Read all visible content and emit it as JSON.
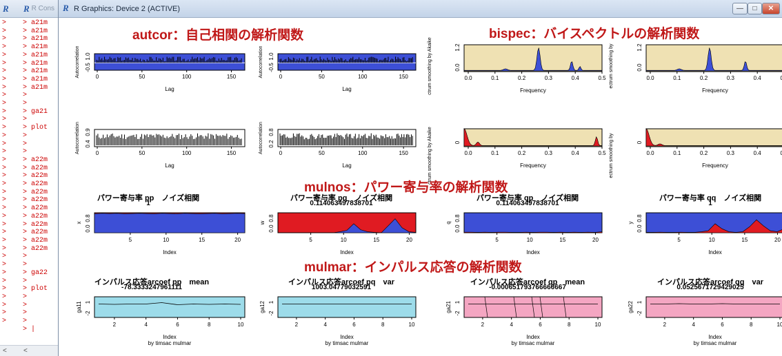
{
  "console_a": {
    "title_icon": "R",
    "lines": [
      ">",
      ">",
      ">",
      ">",
      ">",
      ">",
      ">",
      ">",
      ">",
      ">",
      ">",
      ">",
      ">",
      ">",
      ">",
      ">",
      ">",
      ">",
      ">",
      ">",
      ">",
      ">",
      ">",
      ">",
      ">",
      ">",
      ">",
      ">",
      ">",
      ">",
      ">",
      ">",
      ">",
      ">",
      ">",
      ">",
      ">",
      ">"
    ]
  },
  "console_b": {
    "title": "R Cons",
    "lines": [
      "> a21m",
      "> a21m",
      "> a21m",
      "> a21m",
      "> a21m",
      "> a21m",
      "> a21m",
      "> a21m",
      "> a21m",
      ">",
      ">",
      "> ga21",
      ">",
      "> plot",
      ">",
      ">",
      ">",
      "> a22m",
      "> a22m",
      "> a22m",
      "> a22m",
      "> a22m",
      "> a22m",
      "> a22m",
      "> a22m",
      "> a22m",
      "> a22m",
      "> a22m",
      "> a22m",
      ">",
      ">",
      "> ga22",
      ">",
      "> plot",
      ">",
      ">",
      ">",
      ">",
      "> |"
    ]
  },
  "window": {
    "title": "R Graphics: Device 2 (ACTIVE)",
    "minimize": "—",
    "maximize": "□",
    "close": "✕"
  },
  "headings": {
    "autcor": "autcor：自己相関の解析関数",
    "bispec": "bispec：バイスペクトルの解析関数",
    "mulnos": "mulnos：パワー寄与率の解析関数",
    "mulmar": "mulmar：インパルス応答の解析関数"
  },
  "colors": {
    "blue_fill": "#3d4fd6",
    "red_fill": "#e01b22",
    "bispec_bg": "#efe1b3",
    "mulmar_cyan": "#9ddcea",
    "mulmar_pink": "#f4a6c2",
    "heading_red": "#c01818"
  },
  "autcor": {
    "ylabel": "Autocorrelation",
    "xlabel": "Lag",
    "xticks": [
      "0",
      "50",
      "100",
      "150"
    ],
    "row1_yticks": [
      "-0.5",
      "1.0"
    ],
    "row2_yticks": [
      "0.4",
      "0.9"
    ],
    "row2b_yticks": [
      "0.2",
      "0.8"
    ]
  },
  "bispec": {
    "ylabel": "Akaike",
    "xlabel": "Frequency",
    "xticks": [
      "0.0",
      "0.1",
      "0.2",
      "0.3",
      "0.4",
      "0.5"
    ],
    "row1_yticks": [
      "0.0",
      "1.2"
    ],
    "row2_yticks": [
      "0",
      ""
    ],
    "side_label_1": "ctrum smoothing by  Akaike",
    "side_label_2": "ectrum smoothing by"
  },
  "mulnos": {
    "title_pp": "パワー寄与率 pp　ノイズ相関",
    "sub_pp": "1",
    "title_pq": "パワー寄与率 pq　ノイズ相関",
    "sub_pq": "0.114063497838701",
    "title_qp": "パワー寄与率 qp　ノイズ相関",
    "sub_qp": "0.114063497838701",
    "title_qq": "パワー寄与率 qq　ノイズ相関",
    "sub_qq": "1",
    "ylabels": [
      "x",
      "w",
      "q",
      "y"
    ],
    "xlabel": "Index",
    "xticks": [
      "5",
      "10",
      "15",
      "20"
    ],
    "yticks": [
      "0.0",
      "0.8"
    ]
  },
  "mulmar": {
    "title_pp": "インパルス応答arcoef pp　mean",
    "sub_pp": "-78.3333247961111",
    "title_pq": "インパルス応答arcoef pq　var",
    "sub_pq": "1003.04779032591",
    "title_qp": "インパルス応答arcoef qp　mean",
    "sub_qp": "-0.000651793766666667",
    "title_qq": "インパルス応答arcoef qq　var",
    "sub_qq": "0.0525671729429025",
    "ylabels": [
      "ga11",
      "ga12",
      "ga21",
      "ga22"
    ],
    "xlabel": "Index",
    "sub_caption": "by timsac mulmar",
    "xticks": [
      "2",
      "4",
      "6",
      "8",
      "10"
    ],
    "yticks": [
      "-2",
      "1"
    ]
  }
}
